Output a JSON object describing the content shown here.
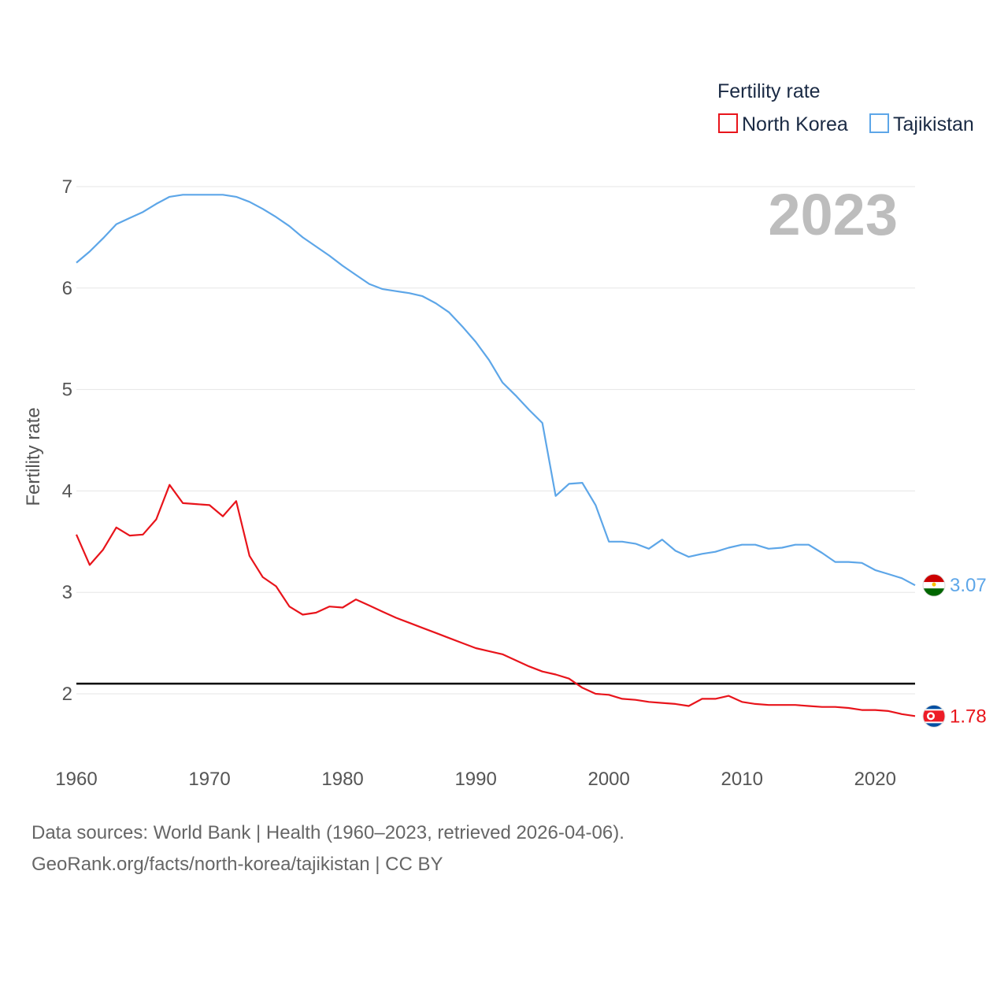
{
  "chart_data": {
    "type": "line",
    "ylabel": "Fertility rate",
    "xlabel": "",
    "xlim": [
      1960,
      2023
    ],
    "ylim": [
      1.5,
      7.1
    ],
    "yticks": [
      2,
      3,
      4,
      5,
      6,
      7
    ],
    "xticks": [
      1960,
      1970,
      1980,
      1990,
      2000,
      2010,
      2020
    ],
    "reference_line": 2.1,
    "year_label": "2023",
    "legend": {
      "title": "Fertility rate",
      "position": "top-right"
    },
    "x": [
      1960,
      1961,
      1962,
      1963,
      1964,
      1965,
      1966,
      1967,
      1968,
      1969,
      1970,
      1971,
      1972,
      1973,
      1974,
      1975,
      1976,
      1977,
      1978,
      1979,
      1980,
      1981,
      1982,
      1983,
      1984,
      1985,
      1986,
      1987,
      1988,
      1989,
      1990,
      1991,
      1992,
      1993,
      1994,
      1995,
      1996,
      1997,
      1998,
      1999,
      2000,
      2001,
      2002,
      2003,
      2004,
      2005,
      2006,
      2007,
      2008,
      2009,
      2010,
      2011,
      2012,
      2013,
      2014,
      2015,
      2016,
      2017,
      2018,
      2019,
      2020,
      2021,
      2022,
      2023
    ],
    "series": [
      {
        "name": "North Korea",
        "color": "#e8141b",
        "end_label": "1.78",
        "flag": "north-korea",
        "values": [
          3.57,
          3.27,
          3.42,
          3.64,
          3.56,
          3.57,
          3.72,
          4.06,
          3.88,
          3.87,
          3.86,
          3.75,
          3.9,
          3.36,
          3.15,
          3.06,
          2.86,
          2.78,
          2.8,
          2.86,
          2.85,
          2.93,
          2.87,
          2.81,
          2.75,
          2.7,
          2.65,
          2.6,
          2.55,
          2.5,
          2.45,
          2.42,
          2.39,
          2.33,
          2.27,
          2.22,
          2.19,
          2.15,
          2.06,
          2.0,
          1.99,
          1.95,
          1.94,
          1.92,
          1.91,
          1.9,
          1.88,
          1.95,
          1.95,
          1.98,
          1.92,
          1.9,
          1.89,
          1.89,
          1.89,
          1.88,
          1.87,
          1.87,
          1.86,
          1.84,
          1.84,
          1.83,
          1.8,
          1.78
        ]
      },
      {
        "name": "Tajikistan",
        "color": "#5da6e8",
        "end_label": "3.07",
        "flag": "tajikistan",
        "values": [
          6.25,
          6.36,
          6.49,
          6.63,
          6.69,
          6.75,
          6.83,
          6.9,
          6.92,
          6.92,
          6.92,
          6.92,
          6.9,
          6.85,
          6.78,
          6.7,
          6.61,
          6.5,
          6.41,
          6.32,
          6.22,
          6.13,
          6.04,
          5.99,
          5.97,
          5.95,
          5.92,
          5.85,
          5.76,
          5.62,
          5.47,
          5.29,
          5.07,
          4.94,
          4.8,
          4.67,
          3.95,
          4.07,
          4.08,
          3.86,
          3.5,
          3.5,
          3.48,
          3.43,
          3.52,
          3.41,
          3.35,
          3.38,
          3.4,
          3.44,
          3.47,
          3.47,
          3.43,
          3.44,
          3.47,
          3.47,
          3.39,
          3.3,
          3.3,
          3.29,
          3.22,
          3.18,
          3.14,
          3.07
        ]
      }
    ]
  },
  "footer": {
    "line1": "Data sources: World Bank | Health (1960–2023, retrieved 2026-04-06).",
    "line2": "GeoRank.org/facts/north-korea/tajikistan | CC BY"
  }
}
